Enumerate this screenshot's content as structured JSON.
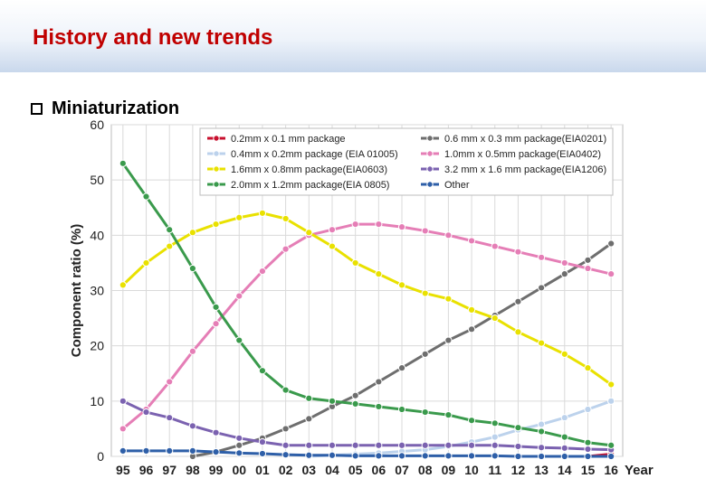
{
  "header": {
    "title": "History and new trends"
  },
  "bullet": {
    "text": "Miniaturization"
  },
  "chart_data": {
    "type": "line",
    "title": "",
    "xlabel": "Year",
    "ylabel": "Component ratio (%)",
    "ylim": [
      0,
      60
    ],
    "yticks": [
      0,
      10,
      20,
      30,
      40,
      50,
      60
    ],
    "grid": true,
    "legend_position": "top",
    "categories": [
      "95",
      "96",
      "97",
      "98",
      "99",
      "00",
      "01",
      "02",
      "03",
      "04",
      "05",
      "06",
      "07",
      "08",
      "09",
      "10",
      "11",
      "12",
      "13",
      "14",
      "15",
      "16"
    ],
    "series": [
      {
        "name": "0.2mm x 0.1 mm package",
        "color": "#c8102e",
        "values": [
          null,
          null,
          null,
          null,
          null,
          null,
          null,
          null,
          null,
          null,
          null,
          null,
          null,
          null,
          null,
          null,
          null,
          0,
          0,
          0,
          0,
          0.4
        ]
      },
      {
        "name": "0.6 mm x 0.3 mm package(EIA0201)",
        "color": "#6e6e6e",
        "values": [
          null,
          null,
          null,
          0,
          0.8,
          2,
          3.3,
          5,
          6.8,
          9,
          11,
          13.5,
          16,
          18.5,
          21,
          23,
          25.5,
          28,
          30.5,
          33,
          35.5,
          38.5
        ]
      },
      {
        "name": "0.4mm x 0.2mm package (EIA 01005)",
        "color": "#bcd2ec",
        "values": [
          null,
          null,
          null,
          null,
          null,
          null,
          null,
          null,
          0,
          0.2,
          0.4,
          0.6,
          0.9,
          1.2,
          1.8,
          2.6,
          3.5,
          4.8,
          5.8,
          7,
          8.5,
          10
        ]
      },
      {
        "name": "1.0mm x 0.5mm package(EIA0402)",
        "color": "#e57eb6",
        "values": [
          5,
          8.5,
          13.5,
          19,
          24,
          29,
          33.5,
          37.5,
          40,
          41,
          42,
          42,
          41.5,
          40.8,
          40,
          39,
          38,
          37,
          36,
          35,
          34,
          33
        ]
      },
      {
        "name": "1.6mm x 0.8mm package(EIA0603)",
        "color": "#e9e100",
        "values": [
          31,
          35,
          38,
          40.5,
          42,
          43.2,
          44,
          43,
          40.5,
          38,
          35,
          33,
          31,
          29.5,
          28.5,
          26.5,
          25,
          22.5,
          20.5,
          18.5,
          16,
          13
        ]
      },
      {
        "name": "3.2 mm x 1.6 mm package(EIA1206)",
        "color": "#7b62b0",
        "values": [
          10,
          8,
          7,
          5.5,
          4.3,
          3.3,
          2.6,
          2,
          2,
          2,
          2,
          2,
          2,
          2,
          2,
          2,
          2,
          1.8,
          1.6,
          1.5,
          1.3,
          1.2
        ]
      },
      {
        "name": "2.0mm x 1.2mm package(EIA 0805)",
        "color": "#3a9a4c",
        "values": [
          53,
          47,
          41,
          34,
          27,
          21,
          15.5,
          12,
          10.5,
          10,
          9.5,
          9,
          8.5,
          8,
          7.5,
          6.5,
          6,
          5.2,
          4.5,
          3.5,
          2.5,
          2
        ]
      },
      {
        "name": "Other",
        "color": "#2e5fa8",
        "values": [
          1,
          1,
          1,
          1,
          0.8,
          0.6,
          0.5,
          0.3,
          0.2,
          0.2,
          0.1,
          0.1,
          0.1,
          0.1,
          0.1,
          0.1,
          0.1,
          0,
          0,
          0,
          0,
          0
        ]
      }
    ]
  }
}
